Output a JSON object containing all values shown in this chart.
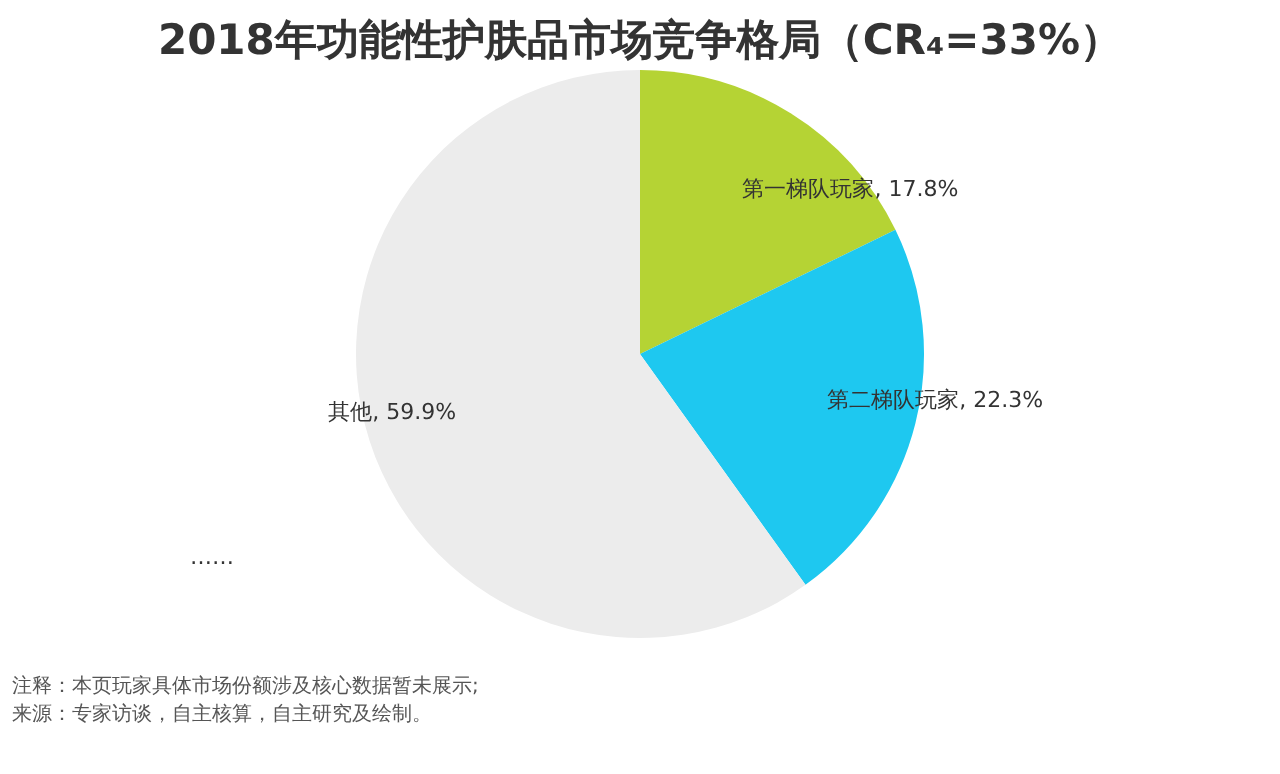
{
  "chart_data": {
    "type": "pie",
    "title": "2018年功能性护肤品市场竞争格局（CR₄=33%）",
    "categories": [
      "第一梯队玩家",
      "第二梯队玩家",
      "其他"
    ],
    "values": [
      17.8,
      22.3,
      59.9
    ],
    "colors": [
      "#b5d334",
      "#1ec8f0",
      "#ececec"
    ],
    "value_labels": [
      "17.8%",
      "22.3%",
      "59.9%"
    ],
    "annotations": [
      "……",
      "注释：本页玩家具体市场份额涉及核心数据暂未展示;",
      "来源：专家访谈，自主核算，自主研究及绘制。"
    ]
  }
}
